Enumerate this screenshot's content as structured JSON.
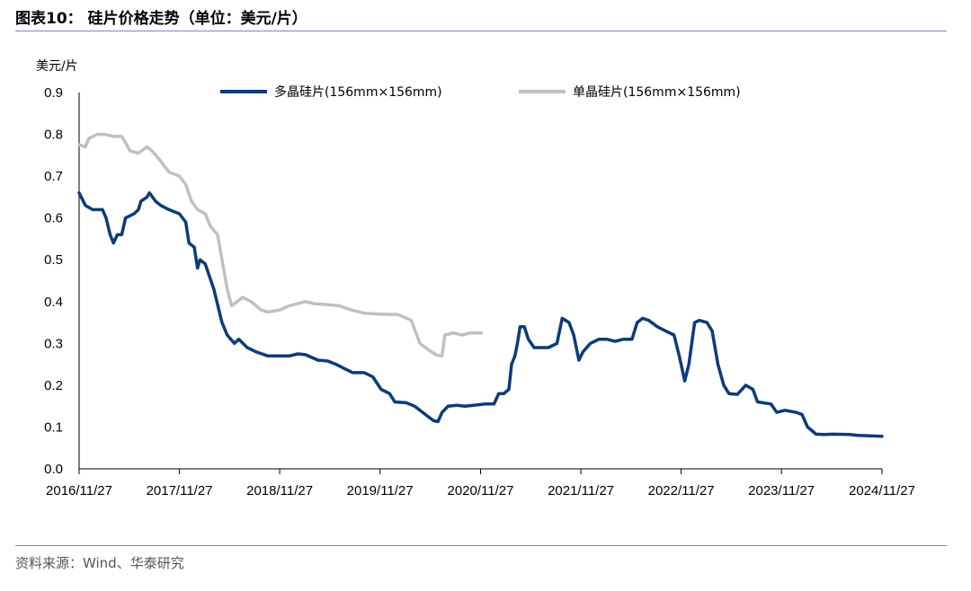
{
  "title": "图表10：  硅片价格走势（单位：美元/片）",
  "source": "资料来源：Wind、华泰研究",
  "colors": {
    "series1": "#0d3b7a",
    "series2": "#c0c0c0",
    "rule": "#6d8fbf"
  },
  "chart_data": {
    "type": "line",
    "ylabel": "美元/片",
    "ylim": [
      0,
      0.9
    ],
    "yticks": [
      "0.0",
      "0.1",
      "0.2",
      "0.3",
      "0.4",
      "0.5",
      "0.6",
      "0.7",
      "0.8",
      "0.9"
    ],
    "xlim": [
      "2016-11-27",
      "2024-11-27"
    ],
    "xticks": [
      "2016/11/27",
      "2017/11/27",
      "2018/11/27",
      "2019/11/27",
      "2020/11/27",
      "2021/11/27",
      "2022/11/27",
      "2023/11/27",
      "2024/11/27"
    ],
    "legend_position": "top",
    "grid": false,
    "series": [
      {
        "name": "多晶硅片(156mm×156mm)",
        "color": "#0d3b7a",
        "points": [
          [
            "2016-11-27",
            0.66
          ],
          [
            "2016-12-20",
            0.63
          ],
          [
            "2017-01-15",
            0.62
          ],
          [
            "2017-02-20",
            0.62
          ],
          [
            "2017-03-05",
            0.6
          ],
          [
            "2017-03-20",
            0.56
          ],
          [
            "2017-04-01",
            0.54
          ],
          [
            "2017-04-15",
            0.56
          ],
          [
            "2017-05-01",
            0.56
          ],
          [
            "2017-05-15",
            0.6
          ],
          [
            "2017-06-15",
            0.61
          ],
          [
            "2017-07-01",
            0.62
          ],
          [
            "2017-07-10",
            0.64
          ],
          [
            "2017-08-01",
            0.65
          ],
          [
            "2017-08-10",
            0.66
          ],
          [
            "2017-09-01",
            0.64
          ],
          [
            "2017-09-20",
            0.63
          ],
          [
            "2017-10-20",
            0.62
          ],
          [
            "2017-11-27",
            0.61
          ],
          [
            "2017-12-20",
            0.59
          ],
          [
            "2018-01-01",
            0.54
          ],
          [
            "2018-01-20",
            0.53
          ],
          [
            "2018-02-01",
            0.48
          ],
          [
            "2018-02-10",
            0.5
          ],
          [
            "2018-03-01",
            0.49
          ],
          [
            "2018-04-01",
            0.43
          ],
          [
            "2018-05-01",
            0.35
          ],
          [
            "2018-05-20",
            0.32
          ],
          [
            "2018-06-15",
            0.3
          ],
          [
            "2018-07-01",
            0.31
          ],
          [
            "2018-08-01",
            0.29
          ],
          [
            "2018-09-01",
            0.28
          ],
          [
            "2018-10-15",
            0.27
          ],
          [
            "2018-11-27",
            0.27
          ],
          [
            "2019-01-01",
            0.27
          ],
          [
            "2019-02-01",
            0.275
          ],
          [
            "2019-03-01",
            0.273
          ],
          [
            "2019-04-15",
            0.26
          ],
          [
            "2019-05-20",
            0.258
          ],
          [
            "2019-06-20",
            0.25
          ],
          [
            "2019-07-20",
            0.24
          ],
          [
            "2019-08-20",
            0.23
          ],
          [
            "2019-10-01",
            0.23
          ],
          [
            "2019-11-01",
            0.22
          ],
          [
            "2019-12-01",
            0.19
          ],
          [
            "2020-01-01",
            0.18
          ],
          [
            "2020-01-20",
            0.16
          ],
          [
            "2020-03-01",
            0.158
          ],
          [
            "2020-04-01",
            0.15
          ],
          [
            "2020-04-20",
            0.14
          ],
          [
            "2020-05-20",
            0.125
          ],
          [
            "2020-06-10",
            0.115
          ],
          [
            "2020-06-25",
            0.113
          ],
          [
            "2020-07-10",
            0.135
          ],
          [
            "2020-08-01",
            0.15
          ],
          [
            "2020-09-01",
            0.152
          ],
          [
            "2020-10-01",
            0.15
          ],
          [
            "2020-11-01",
            0.152
          ],
          [
            "2020-12-15",
            0.155
          ],
          [
            "2021-01-15",
            0.155
          ],
          [
            "2021-02-01",
            0.18
          ],
          [
            "2021-02-20",
            0.18
          ],
          [
            "2021-03-10",
            0.19
          ],
          [
            "2021-03-20",
            0.25
          ],
          [
            "2021-04-01",
            0.27
          ],
          [
            "2021-04-10",
            0.3
          ],
          [
            "2021-04-20",
            0.34
          ],
          [
            "2021-05-05",
            0.34
          ],
          [
            "2021-05-20",
            0.31
          ],
          [
            "2021-06-10",
            0.29
          ],
          [
            "2021-07-15",
            0.29
          ],
          [
            "2021-08-01",
            0.29
          ],
          [
            "2021-09-01",
            0.3
          ],
          [
            "2021-09-20",
            0.36
          ],
          [
            "2021-10-15",
            0.35
          ],
          [
            "2021-11-01",
            0.32
          ],
          [
            "2021-11-20",
            0.26
          ],
          [
            "2021-12-05",
            0.28
          ],
          [
            "2022-01-01",
            0.3
          ],
          [
            "2022-02-01",
            0.31
          ],
          [
            "2022-03-01",
            0.31
          ],
          [
            "2022-04-01",
            0.305
          ],
          [
            "2022-05-01",
            0.31
          ],
          [
            "2022-06-01",
            0.31
          ],
          [
            "2022-06-20",
            0.35
          ],
          [
            "2022-07-10",
            0.36
          ],
          [
            "2022-08-01",
            0.355
          ],
          [
            "2022-09-01",
            0.34
          ],
          [
            "2022-10-01",
            0.33
          ],
          [
            "2022-11-01",
            0.32
          ],
          [
            "2022-11-20",
            0.27
          ],
          [
            "2022-12-10",
            0.21
          ],
          [
            "2022-12-25",
            0.25
          ],
          [
            "2023-01-15",
            0.35
          ],
          [
            "2023-02-01",
            0.355
          ],
          [
            "2023-03-01",
            0.35
          ],
          [
            "2023-03-20",
            0.33
          ],
          [
            "2023-04-10",
            0.25
          ],
          [
            "2023-05-01",
            0.2
          ],
          [
            "2023-05-20",
            0.18
          ],
          [
            "2023-06-20",
            0.178
          ],
          [
            "2023-07-20",
            0.2
          ],
          [
            "2023-08-15",
            0.19
          ],
          [
            "2023-09-01",
            0.16
          ],
          [
            "2023-10-20",
            0.155
          ],
          [
            "2023-11-10",
            0.135
          ],
          [
            "2023-12-10",
            0.14
          ],
          [
            "2024-01-20",
            0.135
          ],
          [
            "2024-02-10",
            0.13
          ],
          [
            "2024-03-01",
            0.1
          ],
          [
            "2024-04-01",
            0.083
          ],
          [
            "2024-05-01",
            0.082
          ],
          [
            "2024-06-01",
            0.083
          ],
          [
            "2024-08-01",
            0.082
          ],
          [
            "2024-09-01",
            0.08
          ],
          [
            "2024-11-27",
            0.078
          ]
        ]
      },
      {
        "name": "单晶硅片(156mm×156mm)",
        "color": "#c0c0c0",
        "points": [
          [
            "2016-11-27",
            0.775
          ],
          [
            "2016-12-20",
            0.77
          ],
          [
            "2017-01-01",
            0.79
          ],
          [
            "2017-02-01",
            0.8
          ],
          [
            "2017-03-01",
            0.8
          ],
          [
            "2017-04-01",
            0.795
          ],
          [
            "2017-05-01",
            0.795
          ],
          [
            "2017-05-15",
            0.78
          ],
          [
            "2017-06-01",
            0.76
          ],
          [
            "2017-07-01",
            0.755
          ],
          [
            "2017-08-01",
            0.77
          ],
          [
            "2017-08-20",
            0.76
          ],
          [
            "2017-09-15",
            0.74
          ],
          [
            "2017-10-20",
            0.71
          ],
          [
            "2017-11-27",
            0.7
          ],
          [
            "2017-12-20",
            0.68
          ],
          [
            "2018-01-10",
            0.64
          ],
          [
            "2018-02-01",
            0.62
          ],
          [
            "2018-03-01",
            0.61
          ],
          [
            "2018-03-20",
            0.58
          ],
          [
            "2018-04-15",
            0.56
          ],
          [
            "2018-05-01",
            0.5
          ],
          [
            "2018-05-20",
            0.43
          ],
          [
            "2018-06-05",
            0.39
          ],
          [
            "2018-06-25",
            0.4
          ],
          [
            "2018-07-15",
            0.41
          ],
          [
            "2018-08-15",
            0.4
          ],
          [
            "2018-09-20",
            0.38
          ],
          [
            "2018-10-15",
            0.375
          ],
          [
            "2018-11-27",
            0.38
          ],
          [
            "2019-01-01",
            0.39
          ],
          [
            "2019-02-01",
            0.395
          ],
          [
            "2019-03-01",
            0.4
          ],
          [
            "2019-04-01",
            0.395
          ],
          [
            "2019-05-15",
            0.393
          ],
          [
            "2019-07-01",
            0.39
          ],
          [
            "2019-08-15",
            0.38
          ],
          [
            "2019-10-01",
            0.372
          ],
          [
            "2019-12-01",
            0.37
          ],
          [
            "2020-02-01",
            0.369
          ],
          [
            "2020-03-20",
            0.355
          ],
          [
            "2020-04-20",
            0.3
          ],
          [
            "2020-05-20",
            0.285
          ],
          [
            "2020-06-20",
            0.272
          ],
          [
            "2020-07-10",
            0.27
          ],
          [
            "2020-07-20",
            0.32
          ],
          [
            "2020-08-20",
            0.325
          ],
          [
            "2020-09-20",
            0.32
          ],
          [
            "2020-10-20",
            0.325
          ],
          [
            "2020-12-01",
            0.325
          ]
        ]
      }
    ]
  }
}
